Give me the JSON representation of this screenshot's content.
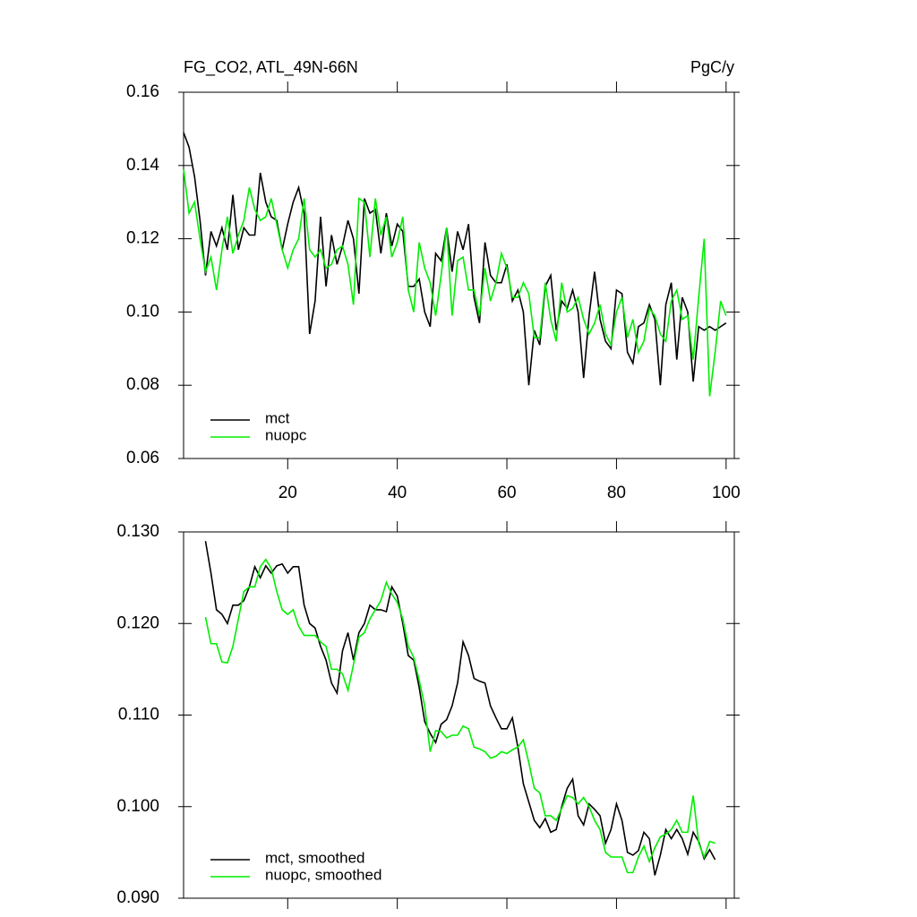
{
  "chart_data": [
    {
      "type": "line",
      "title": "FG_CO2, ATL_49N-66N",
      "units": "PgC/y",
      "x": [
        1,
        2,
        3,
        4,
        5,
        6,
        7,
        8,
        9,
        10,
        11,
        12,
        13,
        14,
        15,
        16,
        17,
        18,
        19,
        20,
        21,
        22,
        23,
        24,
        25,
        26,
        27,
        28,
        29,
        30,
        31,
        32,
        33,
        34,
        35,
        36,
        37,
        38,
        39,
        40,
        41,
        42,
        43,
        44,
        45,
        46,
        47,
        48,
        49,
        50,
        51,
        52,
        53,
        54,
        55,
        56,
        57,
        58,
        59,
        60,
        61,
        62,
        63,
        64,
        65,
        66,
        67,
        68,
        69,
        70,
        71,
        72,
        73,
        74,
        75,
        76,
        77,
        78,
        79,
        80,
        81,
        82,
        83,
        84,
        85,
        86,
        87,
        88,
        89,
        90,
        91,
        92,
        93,
        94,
        95,
        96,
        97,
        98,
        99,
        100
      ],
      "xlim": [
        1,
        101.5
      ],
      "xticks": [
        20,
        40,
        60,
        80,
        100
      ],
      "ylim": [
        0.06,
        0.16
      ],
      "yticks": [
        {
          "value": 0.06,
          "label": "0.06"
        },
        {
          "value": 0.08,
          "label": "0.08"
        },
        {
          "value": 0.1,
          "label": "0.10"
        },
        {
          "value": 0.12,
          "label": "0.12"
        },
        {
          "value": 0.14,
          "label": "0.14"
        },
        {
          "value": 0.16,
          "label": "0.16"
        }
      ],
      "xtick_labels": true,
      "series": [
        {
          "name": "mct",
          "color": "#000000",
          "values": [
            0.149,
            0.145,
            0.137,
            0.125,
            0.11,
            0.122,
            0.118,
            0.123,
            0.117,
            0.132,
            0.117,
            0.123,
            0.121,
            0.121,
            0.138,
            0.13,
            0.126,
            0.125,
            0.117,
            0.124,
            0.13,
            0.134,
            0.127,
            0.094,
            0.103,
            0.126,
            0.107,
            0.121,
            0.113,
            0.118,
            0.125,
            0.12,
            0.105,
            0.131,
            0.127,
            0.128,
            0.116,
            0.127,
            0.118,
            0.124,
            0.122,
            0.107,
            0.107,
            0.109,
            0.1,
            0.096,
            0.116,
            0.114,
            0.123,
            0.111,
            0.122,
            0.117,
            0.124,
            0.104,
            0.097,
            0.119,
            0.11,
            0.108,
            0.108,
            0.113,
            0.103,
            0.106,
            0.1,
            0.08,
            0.095,
            0.091,
            0.107,
            0.11,
            0.095,
            0.103,
            0.101,
            0.106,
            0.1,
            0.082,
            0.099,
            0.111,
            0.098,
            0.092,
            0.09,
            0.106,
            0.105,
            0.089,
            0.086,
            0.096,
            0.097,
            0.102,
            0.098,
            0.08,
            0.102,
            0.108,
            0.087,
            0.104,
            0.1,
            0.081,
            0.096,
            0.095,
            0.096,
            0.095,
            0.096,
            0.097
          ]
        },
        {
          "name": "nuopc",
          "color": "#00ee00",
          "values": [
            0.139,
            0.127,
            0.13,
            0.12,
            0.111,
            0.115,
            0.106,
            0.117,
            0.126,
            0.116,
            0.121,
            0.125,
            0.134,
            0.128,
            0.125,
            0.126,
            0.131,
            0.124,
            0.117,
            0.112,
            0.117,
            0.12,
            0.131,
            0.117,
            0.115,
            0.117,
            0.112,
            0.113,
            0.117,
            0.118,
            0.113,
            0.102,
            0.131,
            0.13,
            0.115,
            0.131,
            0.121,
            0.126,
            0.115,
            0.119,
            0.126,
            0.106,
            0.1,
            0.119,
            0.112,
            0.108,
            0.099,
            0.11,
            0.123,
            0.099,
            0.114,
            0.115,
            0.106,
            0.106,
            0.099,
            0.112,
            0.103,
            0.108,
            0.116,
            0.112,
            0.104,
            0.104,
            0.108,
            0.105,
            0.093,
            0.093,
            0.108,
            0.098,
            0.092,
            0.108,
            0.1,
            0.101,
            0.104,
            0.098,
            0.094,
            0.097,
            0.102,
            0.094,
            0.091,
            0.1,
            0.104,
            0.093,
            0.098,
            0.089,
            0.092,
            0.101,
            0.099,
            0.094,
            0.092,
            0.103,
            0.106,
            0.098,
            0.099,
            0.087,
            0.104,
            0.12,
            0.077,
            0.089,
            0.103,
            0.099
          ]
        }
      ]
    },
    {
      "type": "line",
      "x": [
        1,
        2,
        3,
        4,
        5,
        6,
        7,
        8,
        9,
        10,
        11,
        12,
        13,
        14,
        15,
        16,
        17,
        18,
        19,
        20,
        21,
        22,
        23,
        24,
        25,
        26,
        27,
        28,
        29,
        30,
        31,
        32,
        33,
        34,
        35,
        36,
        37,
        38,
        39,
        40,
        41,
        42,
        43,
        44,
        45,
        46,
        47,
        48,
        49,
        50,
        51,
        52,
        53,
        54,
        55,
        56,
        57,
        58,
        59,
        60,
        61,
        62,
        63,
        64,
        65,
        66,
        67,
        68,
        69,
        70,
        71,
        72,
        73,
        74,
        75,
        76,
        77,
        78,
        79,
        80,
        81,
        82,
        83,
        84,
        85,
        86,
        87,
        88,
        89,
        90,
        91,
        92,
        93,
        94,
        95,
        96,
        97,
        98,
        99,
        100
      ],
      "xlim": [
        1,
        101.5
      ],
      "xticks": [
        20,
        40,
        60,
        80,
        100
      ],
      "ylim": [
        0.09,
        0.13
      ],
      "yticks": [
        {
          "value": 0.09,
          "label": "0.090"
        },
        {
          "value": 0.1,
          "label": "0.100"
        },
        {
          "value": 0.11,
          "label": "0.110"
        },
        {
          "value": 0.12,
          "label": "0.120"
        },
        {
          "value": 0.13,
          "label": "0.130"
        }
      ],
      "xtick_labels": false,
      "series": [
        {
          "name": "mct, smoothed",
          "color": "#000000",
          "values": [
            null,
            null,
            null,
            null,
            0.129,
            0.1255,
            0.1215,
            0.121,
            0.12,
            0.122,
            0.122,
            0.1225,
            0.124,
            0.1262,
            0.125,
            0.1263,
            0.1255,
            0.1263,
            0.1265,
            0.1255,
            0.1262,
            0.1262,
            0.122,
            0.12,
            0.1195,
            0.1175,
            0.116,
            0.1135,
            0.1124,
            0.117,
            0.119,
            0.116,
            0.119,
            0.12,
            0.122,
            0.1215,
            0.1215,
            0.1213,
            0.124,
            0.123,
            0.12,
            0.1165,
            0.116,
            0.113,
            0.1093,
            0.108,
            0.107,
            0.109,
            0.1095,
            0.111,
            0.1135,
            0.118,
            0.1165,
            0.114,
            0.1137,
            0.1135,
            0.111,
            0.1097,
            0.1085,
            0.1085,
            0.1097,
            0.1065,
            0.1025,
            0.1005,
            0.0985,
            0.0977,
            0.0987,
            0.0972,
            0.0975,
            0.1,
            0.102,
            0.103,
            0.099,
            0.098,
            0.1003,
            0.0997,
            0.099,
            0.096,
            0.0975,
            0.1003,
            0.0985,
            0.095,
            0.0947,
            0.0952,
            0.0972,
            0.0965,
            0.0925,
            0.0947,
            0.0975,
            0.0965,
            0.0975,
            0.0965,
            0.0948,
            0.0972,
            0.0962,
            0.0943,
            0.0953,
            0.0942,
            null,
            null
          ]
        },
        {
          "name": "nuopc, smoothed",
          "color": "#00ee00",
          "values": [
            null,
            null,
            null,
            null,
            0.1207,
            0.1178,
            0.1178,
            0.1158,
            0.1157,
            0.1175,
            0.1205,
            0.1235,
            0.124,
            0.124,
            0.1262,
            0.127,
            0.126,
            0.1235,
            0.1215,
            0.121,
            0.1215,
            0.1197,
            0.1187,
            0.1187,
            0.1187,
            0.118,
            0.1175,
            0.115,
            0.115,
            0.1145,
            0.1127,
            0.1155,
            0.1185,
            0.119,
            0.1205,
            0.1215,
            0.1225,
            0.1245,
            0.1232,
            0.1223,
            0.1205,
            0.1175,
            0.1163,
            0.1138,
            0.111,
            0.106,
            0.1083,
            0.1082,
            0.1075,
            0.1078,
            0.1078,
            0.1088,
            0.1085,
            0.1065,
            0.1063,
            0.106,
            0.1053,
            0.1055,
            0.106,
            0.1058,
            0.1062,
            0.1065,
            0.1073,
            0.1048,
            0.102,
            0.1015,
            0.099,
            0.099,
            0.0985,
            0.0998,
            0.1012,
            0.101,
            0.1003,
            0.101,
            0.1,
            0.0985,
            0.0975,
            0.095,
            0.0945,
            0.0945,
            0.0945,
            0.0928,
            0.0928,
            0.0945,
            0.0957,
            0.094,
            0.0955,
            0.0967,
            0.097,
            0.0975,
            0.0985,
            0.0972,
            0.0972,
            0.1012,
            0.096,
            0.0945,
            0.0962,
            0.096,
            null,
            null
          ]
        }
      ]
    }
  ]
}
